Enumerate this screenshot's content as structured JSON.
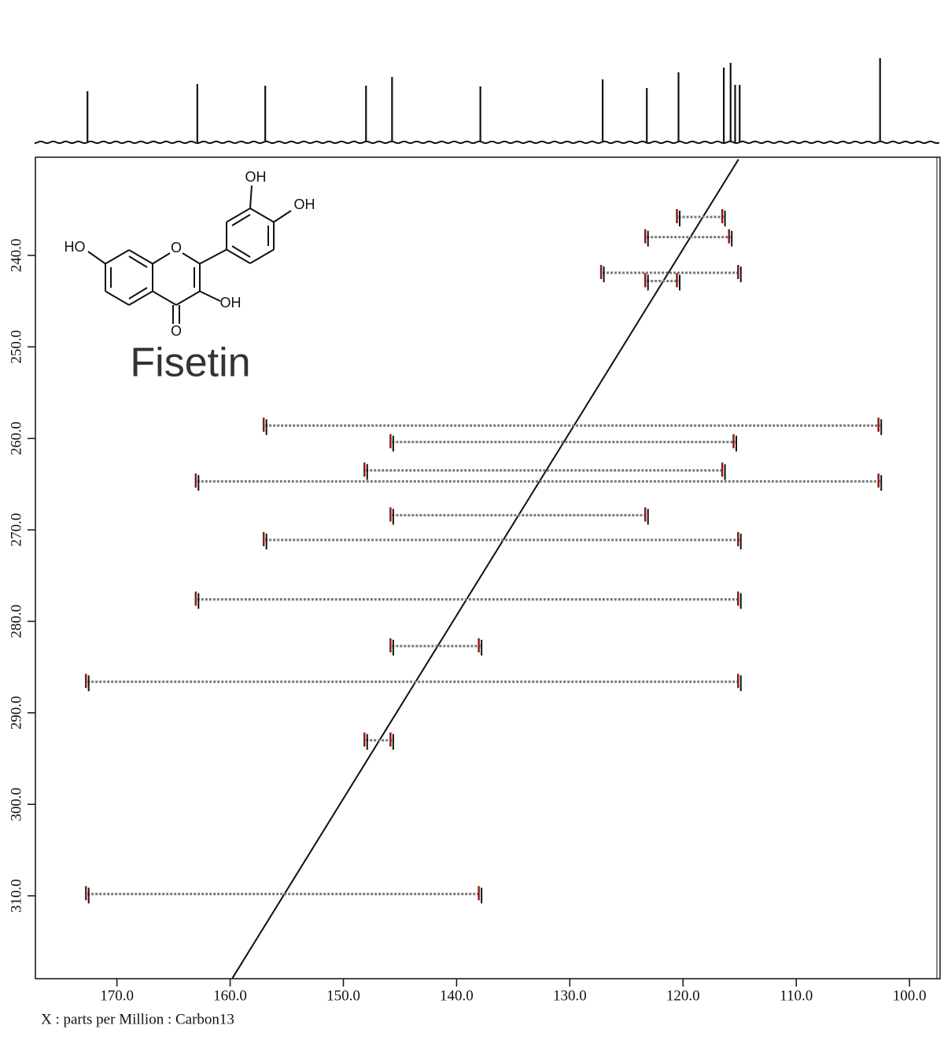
{
  "chart_data": {
    "type": "inadequate",
    "x_label": "X : parts per Million : Carbon13",
    "xlim": [
      177.2,
      97.3
    ],
    "ylim": [
      229.7,
      318.8
    ],
    "xticks": [
      {
        "value": 170,
        "label": "170.0"
      },
      {
        "value": 160,
        "label": "160.0"
      },
      {
        "value": 150,
        "label": "150.0"
      },
      {
        "value": 140,
        "label": "140.0"
      },
      {
        "value": 130,
        "label": "130.0"
      },
      {
        "value": 120,
        "label": "120.0"
      },
      {
        "value": 110,
        "label": "110.0"
      },
      {
        "value": 100,
        "label": "100.0"
      }
    ],
    "yticks": [
      {
        "value": 240,
        "label": "240.0"
      },
      {
        "value": 250,
        "label": "250.0"
      },
      {
        "value": 260,
        "label": "260.0"
      },
      {
        "value": 270,
        "label": "270.0"
      },
      {
        "value": 280,
        "label": "280.0"
      },
      {
        "value": 290,
        "label": "290.0"
      },
      {
        "value": 300,
        "label": "300.0"
      },
      {
        "value": 310,
        "label": "310.0"
      }
    ],
    "spectrum": {
      "shifts": [
        172.6,
        162.9,
        156.9,
        148.0,
        145.7,
        137.9,
        127.1,
        123.2,
        120.4,
        116.4,
        115.8,
        115.4,
        115.0,
        102.6
      ],
      "intensities": [
        65,
        74,
        72,
        72,
        83,
        71,
        80,
        69,
        89,
        95,
        101,
        73,
        73,
        107
      ]
    },
    "correlations": [
      {
        "x": [
          120.4,
          116.4
        ],
        "y": 235.8
      },
      {
        "x": [
          123.2,
          115.8
        ],
        "y": 238.0
      },
      {
        "x": [
          127.1,
          115.0
        ],
        "y": 241.9
      },
      {
        "x": [
          123.2,
          120.4
        ],
        "y": 242.8
      },
      {
        "x": [
          156.9,
          102.6
        ],
        "y": 258.6
      },
      {
        "x": [
          145.7,
          115.4
        ],
        "y": 260.4
      },
      {
        "x": [
          148.0,
          116.4
        ],
        "y": 263.5
      },
      {
        "x": [
          162.9,
          102.6
        ],
        "y": 264.7
      },
      {
        "x": [
          145.7,
          123.2
        ],
        "y": 268.4
      },
      {
        "x": [
          156.9,
          115.0
        ],
        "y": 271.1
      },
      {
        "x": [
          162.9,
          115.0
        ],
        "y": 277.6
      },
      {
        "x": [
          145.7,
          137.9
        ],
        "y": 282.7
      },
      {
        "x": [
          172.6,
          115.0
        ],
        "y": 286.6
      },
      {
        "x": [
          148.0,
          145.7
        ],
        "y": 293.0
      },
      {
        "x": [
          172.6,
          137.9
        ],
        "y": 309.8
      }
    ],
    "diagonal": {
      "x": [
        115.1,
        159.8
      ],
      "y": [
        229.5,
        319.0
      ]
    }
  },
  "molecule": {
    "name": "Fisetin",
    "labels": [
      "OH",
      "OH",
      "HO",
      "O",
      "O",
      "OH"
    ]
  }
}
